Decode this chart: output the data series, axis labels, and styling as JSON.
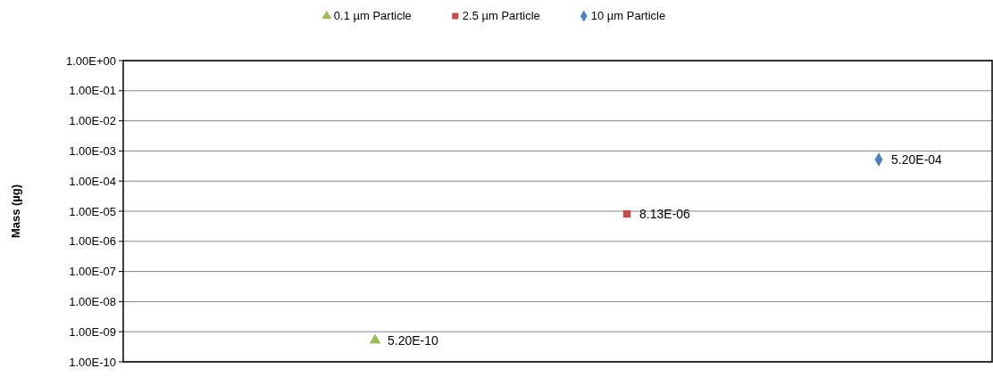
{
  "chart_data": {
    "type": "scatter",
    "ylabel": "Mass (µg)",
    "log": "y",
    "grid": "y",
    "legend": "top",
    "tick_labels": "y",
    "categories": [
      null,
      null,
      null
    ],
    "ylim": [
      1e-10,
      1
    ],
    "yticks": [
      {
        "value": 1e-10,
        "label": "1.00E-10"
      },
      {
        "value": 1e-09,
        "label": "1.00E-09"
      },
      {
        "value": 1e-08,
        "label": "1.00E-08"
      },
      {
        "value": 1e-07,
        "label": "1.00E-07"
      },
      {
        "value": 1e-06,
        "label": "1.00E-06"
      },
      {
        "value": 1e-05,
        "label": "1.00E-05"
      },
      {
        "value": 0.0001,
        "label": "1.00E-04"
      },
      {
        "value": 0.001,
        "label": "1.00E-03"
      },
      {
        "value": 0.01,
        "label": "1.00E-02"
      },
      {
        "value": 0.1,
        "label": "1.00E-01"
      },
      {
        "value": 1,
        "label": "1.00E+00"
      }
    ],
    "series": [
      {
        "name": "0.1 µm Particle",
        "color": "#9bbb59",
        "marker": "triangle",
        "values": [
          5.2e-10,
          null,
          null
        ],
        "value_labels": [
          "5.20E-10",
          null,
          null
        ]
      },
      {
        "name": "2.5 µm Particle",
        "color": "#c0504d",
        "marker": "square",
        "values": [
          null,
          8.13e-06,
          null
        ],
        "value_labels": [
          null,
          "8.13E-06",
          null
        ]
      },
      {
        "name": "10 µm Particle",
        "color": "#4f81bd",
        "marker": "diamond",
        "values": [
          null,
          null,
          0.00052
        ],
        "value_labels": [
          null,
          null,
          "5.20E-04"
        ]
      }
    ]
  }
}
